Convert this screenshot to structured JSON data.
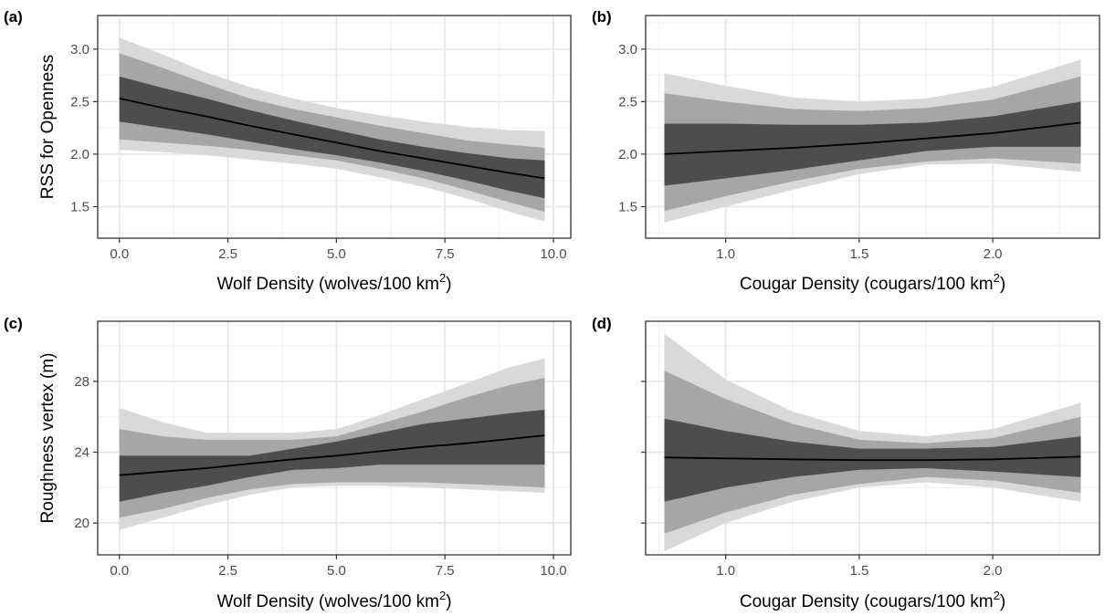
{
  "chart_data": [
    {
      "panel": "(a)",
      "type": "line",
      "xlabel": {
        "main": "Wolf Density (wolves/100 km",
        "sup": "2",
        "tail": ")"
      },
      "ylabel": "RSS for Openness",
      "xlim": [
        -0.5,
        10.4
      ],
      "ylim": [
        1.2,
        3.32
      ],
      "xticks": [
        0.0,
        2.5,
        5.0,
        7.5,
        10.0
      ],
      "xtick_labels": [
        "0.0",
        "2.5",
        "5.0",
        "7.5",
        "10.0"
      ],
      "yticks": [
        1.5,
        2.0,
        2.5,
        3.0
      ],
      "ytick_labels": [
        "1.5",
        "2.0",
        "2.5",
        "3.0"
      ],
      "show_yticks": true,
      "grid": true,
      "x": [
        0,
        1,
        2,
        3,
        4,
        5,
        6,
        7,
        8,
        9,
        9.8
      ],
      "mean": [
        2.53,
        2.44,
        2.36,
        2.27,
        2.19,
        2.11,
        2.03,
        1.96,
        1.89,
        1.82,
        1.77
      ],
      "bands": [
        {
          "level": "outer",
          "color": "#d9d9d9",
          "lower": [
            2.04,
            2.02,
            1.99,
            1.95,
            1.91,
            1.86,
            1.78,
            1.69,
            1.58,
            1.45,
            1.36
          ],
          "upper": [
            3.11,
            2.95,
            2.78,
            2.64,
            2.53,
            2.44,
            2.37,
            2.31,
            2.26,
            2.23,
            2.22
          ]
        },
        {
          "level": "middle",
          "color": "#a6a6a6",
          "lower": [
            2.14,
            2.11,
            2.08,
            2.04,
            1.99,
            1.94,
            1.86,
            1.77,
            1.66,
            1.54,
            1.45
          ],
          "upper": [
            2.96,
            2.82,
            2.67,
            2.53,
            2.43,
            2.35,
            2.27,
            2.2,
            2.13,
            2.09,
            2.06
          ]
        },
        {
          "level": "inner",
          "color": "#4d4d4d",
          "lower": [
            2.31,
            2.25,
            2.19,
            2.12,
            2.05,
            1.99,
            1.92,
            1.84,
            1.75,
            1.65,
            1.58
          ],
          "upper": [
            2.74,
            2.63,
            2.53,
            2.42,
            2.32,
            2.23,
            2.14,
            2.07,
            2.01,
            1.96,
            1.94
          ]
        }
      ]
    },
    {
      "panel": "(b)",
      "type": "line",
      "xlabel": {
        "main": "Cougar Density (cougars/100 km",
        "sup": "2",
        "tail": ")"
      },
      "ylabel": "",
      "xlim": [
        0.7,
        2.4
      ],
      "ylim": [
        1.2,
        3.32
      ],
      "xticks": [
        1.0,
        1.5,
        2.0
      ],
      "xtick_labels": [
        "1.0",
        "1.5",
        "2.0"
      ],
      "yticks": [
        1.5,
        2.0,
        2.5,
        3.0
      ],
      "ytick_labels": [
        "1.5",
        "2.0",
        "2.5",
        "3.0"
      ],
      "show_yticks": true,
      "grid": true,
      "x": [
        0.77,
        1.0,
        1.25,
        1.5,
        1.75,
        2.0,
        2.33
      ],
      "mean": [
        2.0,
        2.03,
        2.06,
        2.1,
        2.15,
        2.2,
        2.3
      ],
      "bands": [
        {
          "level": "outer",
          "color": "#d9d9d9",
          "lower": [
            1.35,
            1.5,
            1.66,
            1.81,
            1.9,
            1.91,
            1.83
          ],
          "upper": [
            2.77,
            2.65,
            2.54,
            2.5,
            2.53,
            2.64,
            2.9
          ]
        },
        {
          "level": "middle",
          "color": "#a6a6a6",
          "lower": [
            1.46,
            1.6,
            1.74,
            1.86,
            1.93,
            1.96,
            1.91
          ],
          "upper": [
            2.58,
            2.5,
            2.43,
            2.41,
            2.44,
            2.52,
            2.74
          ]
        },
        {
          "level": "inner",
          "color": "#4d4d4d",
          "lower": [
            1.7,
            1.77,
            1.85,
            1.94,
            2.03,
            2.07,
            2.07
          ],
          "upper": [
            2.29,
            2.29,
            2.28,
            2.28,
            2.3,
            2.36,
            2.5
          ]
        }
      ]
    },
    {
      "panel": "(c)",
      "type": "line",
      "xlabel": {
        "main": "Wolf Density (wolves/100 km",
        "sup": "2",
        "tail": ")"
      },
      "ylabel": "Roughness vertex (m)",
      "xlim": [
        -0.5,
        10.4
      ],
      "ylim": [
        18.2,
        31.4
      ],
      "xticks": [
        0.0,
        2.5,
        5.0,
        7.5,
        10.0
      ],
      "xtick_labels": [
        "0.0",
        "2.5",
        "5.0",
        "7.5",
        "10.0"
      ],
      "yticks": [
        20,
        24,
        28
      ],
      "ytick_labels": [
        "20",
        "24",
        "28"
      ],
      "show_yticks": true,
      "grid": true,
      "x": [
        0,
        1,
        2,
        3,
        4,
        5,
        6,
        7,
        8,
        9,
        9.8
      ],
      "mean": [
        22.7,
        22.9,
        23.1,
        23.35,
        23.6,
        23.8,
        24.05,
        24.3,
        24.5,
        24.75,
        24.95
      ],
      "bands": [
        {
          "level": "outer",
          "color": "#d9d9d9",
          "lower": [
            19.6,
            20.3,
            21.0,
            21.6,
            22.0,
            22.1,
            22.1,
            22.0,
            21.9,
            21.8,
            21.7
          ],
          "upper": [
            26.5,
            25.7,
            25.1,
            25.1,
            25.1,
            25.3,
            26.1,
            27.0,
            27.9,
            28.8,
            29.3
          ]
        },
        {
          "level": "middle",
          "color": "#a6a6a6",
          "lower": [
            20.3,
            20.8,
            21.4,
            21.9,
            22.2,
            22.3,
            22.3,
            22.3,
            22.2,
            22.1,
            22.0
          ],
          "upper": [
            25.3,
            24.9,
            24.7,
            24.7,
            24.7,
            24.9,
            25.6,
            26.3,
            27.1,
            27.8,
            28.2
          ]
        },
        {
          "level": "inner",
          "color": "#4d4d4d",
          "lower": [
            21.2,
            21.7,
            22.1,
            22.6,
            23.0,
            23.1,
            23.3,
            23.3,
            23.3,
            23.3,
            23.3
          ],
          "upper": [
            23.8,
            23.8,
            23.8,
            23.8,
            24.2,
            24.6,
            25.1,
            25.6,
            25.9,
            26.2,
            26.4
          ]
        }
      ]
    },
    {
      "panel": "(d)",
      "type": "line",
      "xlabel": {
        "main": "Cougar Density (cougars/100 km",
        "sup": "2",
        "tail": ")"
      },
      "ylabel": "",
      "xlim": [
        0.7,
        2.4
      ],
      "ylim": [
        18.2,
        31.4
      ],
      "xticks": [
        1.0,
        1.5,
        2.0
      ],
      "xtick_labels": [
        "1.0",
        "1.5",
        "2.0"
      ],
      "yticks": [
        20,
        24,
        28
      ],
      "ytick_labels": [
        "20",
        "24",
        "28"
      ],
      "show_yticks": false,
      "grid": true,
      "x": [
        0.77,
        1.0,
        1.25,
        1.5,
        1.75,
        2.0,
        2.33
      ],
      "mean": [
        23.7,
        23.65,
        23.6,
        23.55,
        23.55,
        23.6,
        23.75
      ],
      "bands": [
        {
          "level": "outer",
          "color": "#d9d9d9",
          "lower": [
            18.4,
            20.0,
            21.2,
            22.0,
            22.3,
            22.0,
            21.2
          ],
          "upper": [
            30.7,
            28.1,
            26.3,
            25.2,
            24.9,
            25.3,
            26.8
          ]
        },
        {
          "level": "middle",
          "color": "#a6a6a6",
          "lower": [
            19.4,
            20.6,
            21.6,
            22.2,
            22.6,
            22.4,
            21.7
          ],
          "upper": [
            28.6,
            27.0,
            25.6,
            24.7,
            24.5,
            24.8,
            26.0
          ]
        },
        {
          "level": "inner",
          "color": "#4d4d4d",
          "lower": [
            21.2,
            22.0,
            22.6,
            23.0,
            23.1,
            22.9,
            22.6
          ],
          "upper": [
            25.9,
            25.2,
            24.6,
            24.2,
            24.2,
            24.3,
            24.9
          ]
        }
      ]
    }
  ]
}
